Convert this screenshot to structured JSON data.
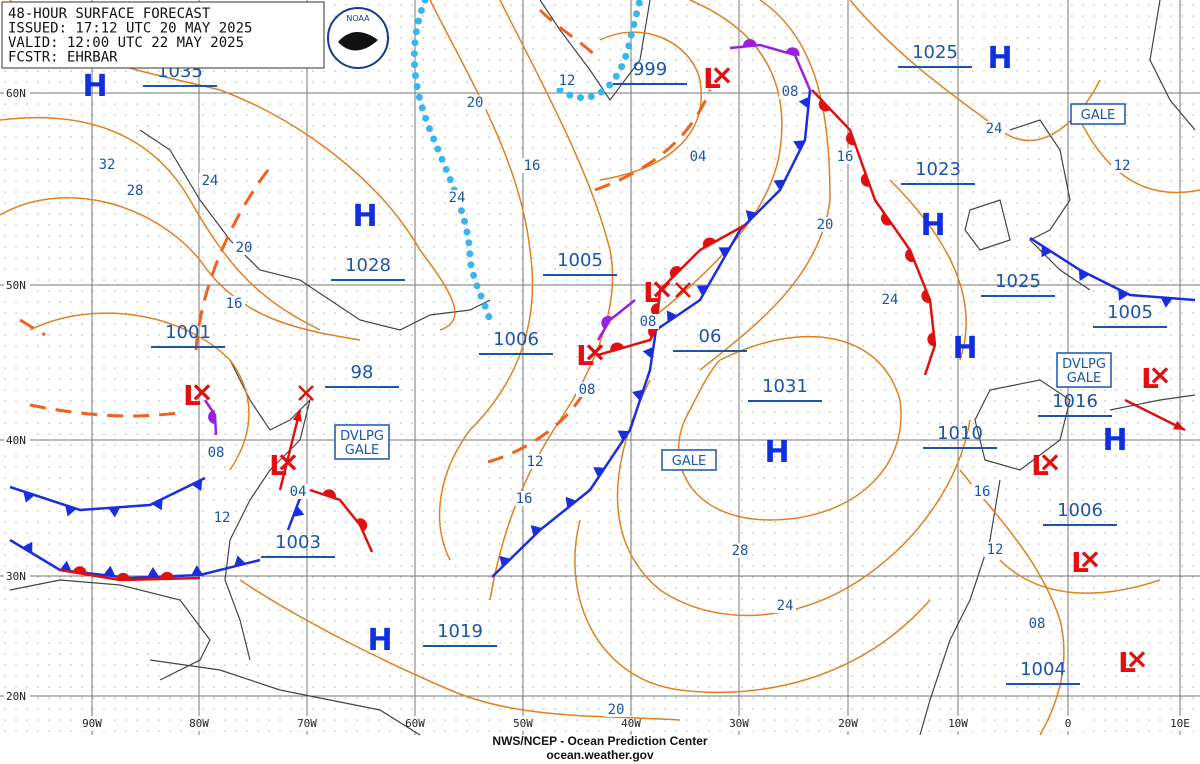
{
  "header": {
    "lines": [
      "48-HOUR SURFACE FORECAST",
      "ISSUED: 17:12 UTC 20 MAY 2025",
      "VALID:  12:00 UTC 22 MAY 2025",
      "FCSTR: EHRBAR"
    ]
  },
  "logo": "NOAA",
  "lat_labels": [
    "60N",
    "50N",
    "40N",
    "30N",
    "20N"
  ],
  "lon_labels": [
    "90W",
    "80W",
    "70W",
    "60W",
    "50W",
    "40W",
    "30W",
    "20W",
    "10W",
    "0",
    "10E"
  ],
  "pressure_labels": [
    "1035",
    "999",
    "1025",
    "1023",
    "1028",
    "1005",
    "1025",
    "1005",
    "1001",
    "1006",
    "06",
    "98",
    "1031",
    "1016",
    "1010",
    "1003",
    "1006",
    "1019",
    "1004"
  ],
  "symbols": {
    "high": "H",
    "low": "L"
  },
  "isobar_labels": [
    "20",
    "16",
    "12",
    "04",
    "08",
    "16",
    "24",
    "12",
    "20",
    "24",
    "32",
    "28",
    "24",
    "20",
    "16",
    "24",
    "08",
    "08",
    "08",
    "04",
    "12",
    "12",
    "16",
    "28",
    "24",
    "16",
    "12",
    "08",
    "20"
  ],
  "warnings": [
    [
      "GALE"
    ],
    [
      "DVLPG",
      "GALE"
    ],
    [
      "GALE"
    ],
    [
      "DVLPG",
      "GALE"
    ]
  ],
  "footer": {
    "agency": "NWS/NCEP - Ocean Prediction Center",
    "url": "ocean.weather.gov"
  }
}
